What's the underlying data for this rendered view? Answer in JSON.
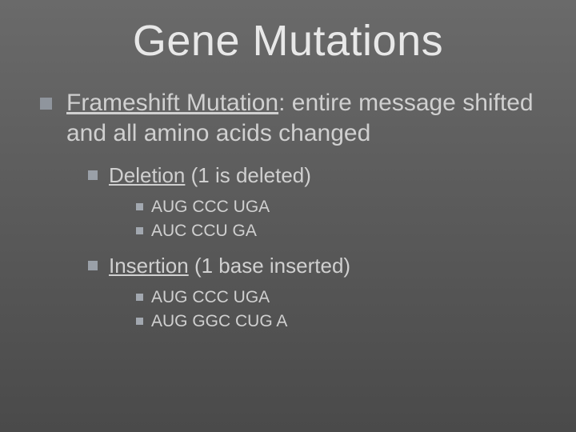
{
  "title": "Gene Mutations",
  "main": {
    "heading_underlined": "Frameshift Mutation",
    "heading_rest": ": entire message shifted and all amino acids changed"
  },
  "sections": {
    "deletion": {
      "label_underlined": "Deletion",
      "label_rest": " (1 is deleted)",
      "lines": [
        "AUG CCC UGA",
        "AUC CCU GA"
      ]
    },
    "insertion": {
      "label_underlined": "Insertion",
      "label_rest": "  (1 base inserted)",
      "lines": [
        "AUG CCC UGA",
        "AUG GGC CUG A"
      ]
    }
  },
  "colors": {
    "text": "#d0d0d0",
    "title": "#e8e8e8",
    "bullet": "#9aa0a8",
    "bg_top": "#6a6a6a",
    "bg_bottom": "#4a4a4a"
  }
}
